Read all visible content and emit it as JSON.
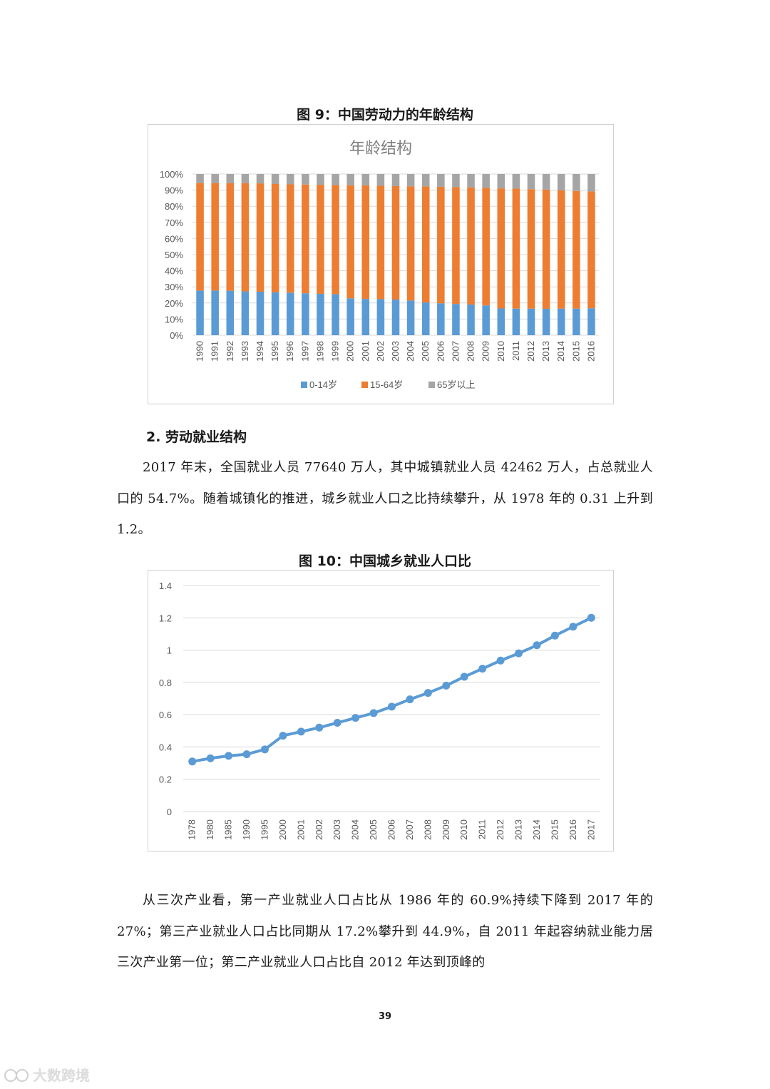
{
  "figure9": {
    "caption": "图 9：中国劳动力的年龄结构",
    "chart_data": {
      "type": "bar",
      "stacked": "percent",
      "title": "年龄结构",
      "categories": [
        "1990",
        "1991",
        "1992",
        "1993",
        "1994",
        "1995",
        "1996",
        "1997",
        "1998",
        "1999",
        "2000",
        "2001",
        "2002",
        "2003",
        "2004",
        "2005",
        "2006",
        "2007",
        "2008",
        "2009",
        "2010",
        "2011",
        "2012",
        "2013",
        "2014",
        "2015",
        "2016"
      ],
      "series": [
        {
          "name": "0-14岁",
          "color": "#5b9bd5",
          "values": [
            27.7,
            27.7,
            27.6,
            27.2,
            27.0,
            26.6,
            26.4,
            26.0,
            25.7,
            25.4,
            22.9,
            22.5,
            22.4,
            22.1,
            21.5,
            20.3,
            19.8,
            19.4,
            19.0,
            18.5,
            16.6,
            16.5,
            16.5,
            16.4,
            16.5,
            16.5,
            16.7
          ]
        },
        {
          "name": "15-64岁",
          "color": "#ed7d31",
          "values": [
            66.7,
            66.7,
            66.7,
            67.1,
            67.2,
            67.2,
            67.2,
            67.5,
            67.6,
            67.7,
            70.1,
            70.4,
            70.3,
            70.4,
            70.9,
            72.0,
            72.3,
            72.5,
            72.7,
            73.0,
            74.5,
            74.4,
            74.1,
            73.9,
            73.4,
            73.0,
            72.5
          ]
        },
        {
          "name": "65岁以上",
          "color": "#a5a5a5",
          "values": [
            5.6,
            5.6,
            5.7,
            5.7,
            5.8,
            6.2,
            6.4,
            6.5,
            6.7,
            6.9,
            7.0,
            7.1,
            7.3,
            7.5,
            7.6,
            7.7,
            7.9,
            8.1,
            8.3,
            8.5,
            8.9,
            9.1,
            9.4,
            9.7,
            10.1,
            10.5,
            10.8
          ]
        }
      ],
      "yticks": [
        "0%",
        "10%",
        "20%",
        "30%",
        "40%",
        "50%",
        "60%",
        "70%",
        "80%",
        "90%",
        "100%"
      ],
      "ylim": [
        0,
        100
      ],
      "grid": true,
      "legend": "bottom"
    }
  },
  "section": {
    "heading": "2.   劳动就业结构",
    "para1": "2017 年末，全国就业人员 77640 万人，其中城镇就业人员 42462 万人，占总就业人口的 54.7%。随着城镇化的推进，城乡就业人口之比持续攀升，从 1978 年的 0.31 上升到 1.2。"
  },
  "figure10": {
    "caption": "图 10：中国城乡就业人口比",
    "chart_data": {
      "type": "line",
      "title": "",
      "categories": [
        "1978",
        "1980",
        "1985",
        "1990",
        "1995",
        "2000",
        "2001",
        "2002",
        "2003",
        "2004",
        "2005",
        "2006",
        "2007",
        "2008",
        "2009",
        "2010",
        "2011",
        "2012",
        "2013",
        "2014",
        "2015",
        "2016",
        "2017"
      ],
      "series": [
        {
          "color": "#5b9bd5",
          "values": [
            0.31,
            0.33,
            0.345,
            0.355,
            0.385,
            0.47,
            0.495,
            0.52,
            0.55,
            0.58,
            0.61,
            0.65,
            0.695,
            0.735,
            0.78,
            0.835,
            0.885,
            0.935,
            0.98,
            1.03,
            1.09,
            1.145,
            1.2
          ]
        }
      ],
      "yticks": [
        "0",
        "0.2",
        "0.4",
        "0.6",
        "0.8",
        "1",
        "1.2",
        "1.4"
      ],
      "ylim": [
        0,
        1.4
      ],
      "grid": true
    }
  },
  "para2": "从三次产业看，第一产业就业人口占比从 1986 年的 60.9%持续下降到 2017 年的 27%；第三产业就业人口占比同期从 17.2%攀升到 44.9%，自 2011 年起容纳就业能力居三次产业第一位；第二产业就业人口占比自  2012  年达到顶峰的",
  "page_number": "39",
  "watermark": "大数跨境"
}
